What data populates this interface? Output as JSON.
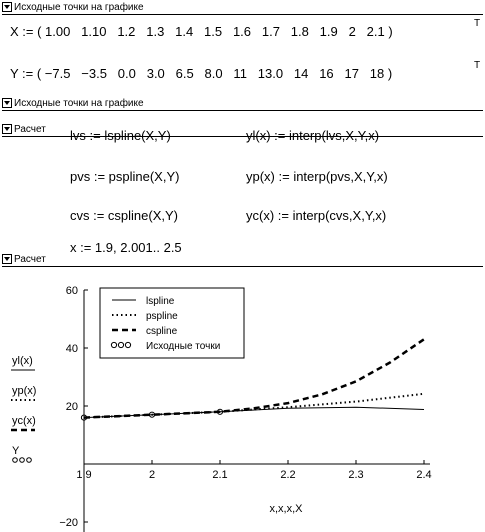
{
  "regions": {
    "region1_title": "Исходные точки на графике",
    "region1_close_title": "Исходные точки на графике",
    "region2_title": "Расчет",
    "region2_close_title": "Расчет"
  },
  "math": {
    "x_def": "X := ( 1.00   1.10   1.2   1.3   1.4   1.5   1.6   1.7   1.8   1.9   2   2.1 )",
    "x_sup": "T",
    "y_def": "Y := ( −7.5   −3.5   0.0   3.0   6.5   8.0   11   13.0   14   16   17   18 )",
    "y_sup": "T",
    "lvs": "lvs := lspline(X,Y)",
    "pvs": "pvs := pspline(X,Y)",
    "cvs": "cvs := cspline(X,Y)",
    "yl": "yl(x) := interp(lvs,X,Y,x)",
    "yp": "yp(x) := interp(pvs,X,Y,x)",
    "yc": "yc(x) := interp(cvs,X,Y,x)",
    "xrange": "x := 1.9, 2.001.. 2.5"
  },
  "chart_data": {
    "type": "line",
    "xlabel": "x,x,x,X",
    "ylabel_items": [
      "yl(x)",
      "yp(x)",
      "yc(x)",
      "Y"
    ],
    "xlim": [
      1.9,
      2.4
    ],
    "ylim": [
      -20,
      60
    ],
    "x_ticks": [
      "1.9",
      "2",
      "2.1",
      "2.2",
      "2.3",
      "2.4"
    ],
    "y_ticks": [
      "60",
      "40",
      "20",
      "−20"
    ],
    "legend": [
      "lspline",
      "pspline",
      "cspline",
      "Исходные точки"
    ],
    "series": [
      {
        "name": "lspline",
        "style": "solid",
        "x": [
          1.9,
          2.0,
          2.1,
          2.2,
          2.3,
          2.4
        ],
        "values": [
          16,
          17,
          18,
          19.2,
          19.6,
          18.8
        ]
      },
      {
        "name": "pspline",
        "style": "dotted",
        "x": [
          1.9,
          2.0,
          2.1,
          2.2,
          2.3,
          2.4
        ],
        "values": [
          16,
          17,
          18,
          19.6,
          21.5,
          24.2
        ]
      },
      {
        "name": "cspline",
        "style": "dashed",
        "x": [
          1.9,
          2.0,
          2.1,
          2.15,
          2.2,
          2.25,
          2.3,
          2.35,
          2.4
        ],
        "values": [
          16,
          17,
          18,
          19.2,
          21,
          24,
          28.5,
          35,
          43
        ]
      },
      {
        "name": "Исходные точки",
        "style": "markers",
        "x": [
          1.9,
          2.0,
          2.1
        ],
        "values": [
          16,
          17,
          18
        ]
      }
    ]
  }
}
